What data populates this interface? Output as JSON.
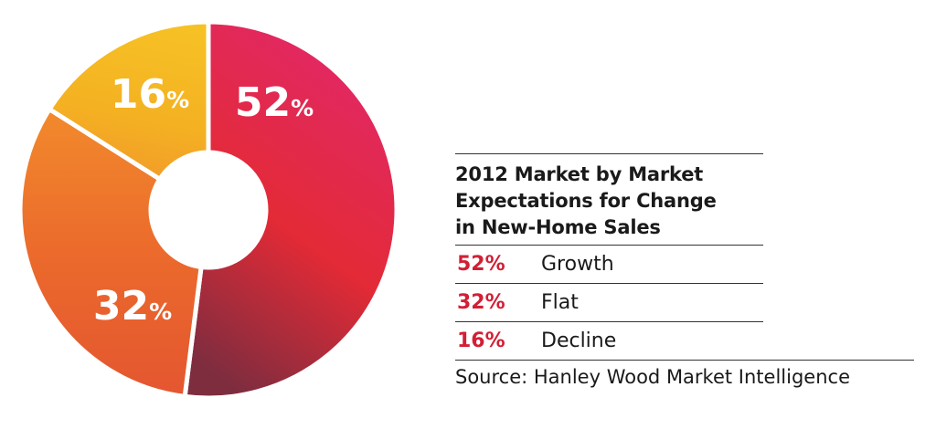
{
  "chart_data": {
    "type": "pie",
    "donut": true,
    "title": "2012 Market by Market Expectations for Change in New-Home Sales",
    "slices": [
      {
        "label": "Growth",
        "value": 52,
        "value_label": "52%",
        "colors": [
          "#e2286a",
          "#e32a36",
          "#7e2d3f"
        ]
      },
      {
        "label": "Flat",
        "value": 32,
        "value_label": "32%",
        "colors": [
          "#f28a2c",
          "#eb6a2c",
          "#e45630"
        ]
      },
      {
        "label": "Decline",
        "value": 16,
        "value_label": "16%",
        "colors": [
          "#f6c125",
          "#f4b122",
          "#f29a2a"
        ]
      }
    ],
    "value_color": "#d21f35",
    "source": "Source: Hanley Wood Market Intelligence"
  },
  "legend": {
    "title_lines": [
      "2012 Market by Market",
      "Expectations for Change",
      "in New-Home Sales"
    ],
    "rows": [
      {
        "value": "52%",
        "label": "Growth"
      },
      {
        "value": "32%",
        "label": "Flat"
      },
      {
        "value": "16%",
        "label": "Decline"
      }
    ],
    "source": "Source: Hanley Wood Market Intelligence"
  }
}
